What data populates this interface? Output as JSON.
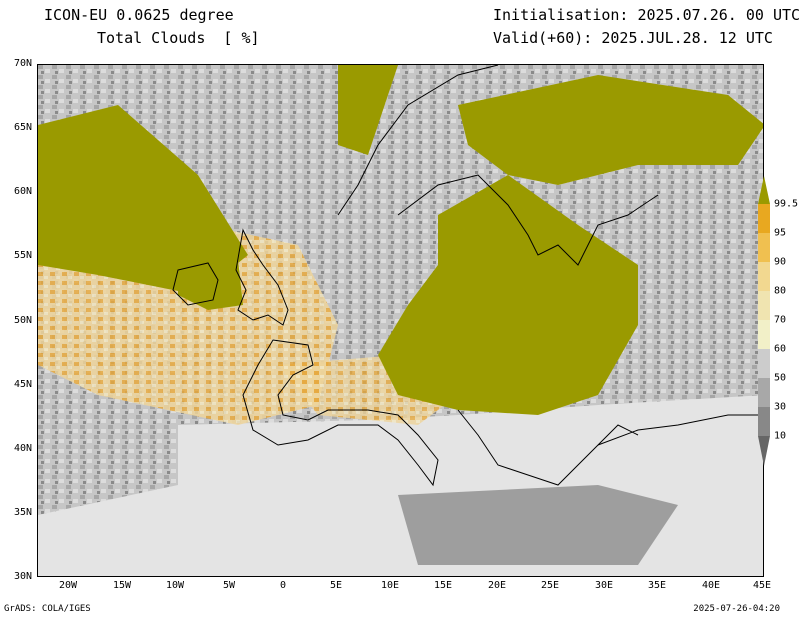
{
  "header": {
    "model": "ICON-EU 0.0625 degree",
    "field": "Total Clouds  [ %]",
    "init": "Initialisation: 2025.07.26. 00 UTC",
    "valid": "Valid(+60): 2025.JUL.28. 12 UTC"
  },
  "axes": {
    "lat_labels": [
      "70N",
      "65N",
      "60N",
      "55N",
      "50N",
      "45N",
      "40N",
      "35N",
      "30N"
    ],
    "lon_labels": [
      "20W",
      "15W",
      "10W",
      "5W",
      "0",
      "5E",
      "10E",
      "15E",
      "20E",
      "25E",
      "30E",
      "35E",
      "40E",
      "45E"
    ]
  },
  "colorbar": {
    "labels": [
      "99.5",
      "95",
      "90",
      "80",
      "70",
      "60",
      "50",
      "30",
      "10"
    ],
    "colors": [
      "#9a9a00",
      "#e8a820",
      "#f0c050",
      "#f2d890",
      "#f0e4b0",
      "#f2f0c8",
      "#cccccc",
      "#a8a8a8",
      "#888888",
      "#666666"
    ]
  },
  "footer": {
    "left": "GrADS: COLA/IGES",
    "right": "2025-07-26-04:20"
  }
}
